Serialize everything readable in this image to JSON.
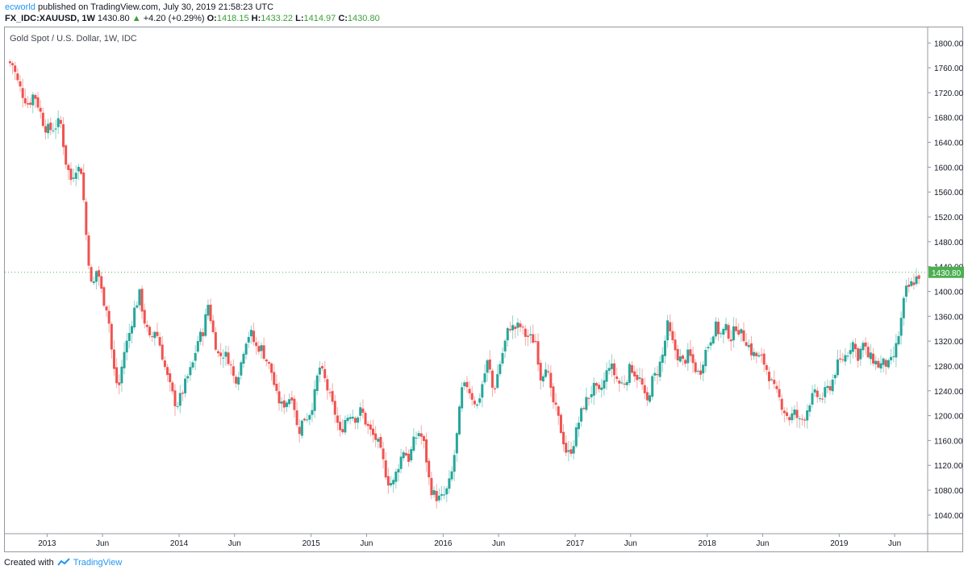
{
  "header": {
    "author": "ecworld",
    "published": "published on TradingView.com, July 30, 2019 21:58:23 UTC",
    "symbol": "FX_IDC:XAUUSD, 1W",
    "last": "1430.80",
    "change_arrow": "▲",
    "change": "+4.20 (+0.29%)",
    "o_label": "O:",
    "o_value": "1418.15",
    "h_label": "H:",
    "h_value": "1433.22",
    "l_label": "L:",
    "l_value": "1414.97",
    "c_label": "C:",
    "c_value": "1430.80"
  },
  "footer": {
    "created_with": "Created with",
    "brand": "TradingView"
  },
  "colors": {
    "up": "#26a69a",
    "down": "#ef5350",
    "last_price_tag": "#4caf50",
    "brand": "#2196f3"
  },
  "chart_data": {
    "type": "candlestick",
    "title": "Gold Spot / U.S. Dollar, 1W, IDC",
    "ylim": [
      1010,
      1825
    ],
    "y_ticks": [
      "1800.00",
      "1760.00",
      "1720.00",
      "1680.00",
      "1640.00",
      "1600.00",
      "1560.00",
      "1520.00",
      "1480.00",
      "1440.00",
      "1400.00",
      "1360.00",
      "1320.00",
      "1280.00",
      "1240.00",
      "1200.00",
      "1160.00",
      "1120.00",
      "1080.00",
      "1040.00"
    ],
    "x_ticks": [
      {
        "label": "2013",
        "x": 2012.98
      },
      {
        "label": "Jun",
        "x": 2013.4
      },
      {
        "label": "2014",
        "x": 2013.98
      },
      {
        "label": "Jun",
        "x": 2014.4
      },
      {
        "label": "2015",
        "x": 2014.98
      },
      {
        "label": "Jun",
        "x": 2015.4
      },
      {
        "label": "2016",
        "x": 2015.98
      },
      {
        "label": "Jun",
        "x": 2016.4
      },
      {
        "label": "2017",
        "x": 2016.98
      },
      {
        "label": "Jun",
        "x": 2017.4
      },
      {
        "label": "2018",
        "x": 2017.98
      },
      {
        "label": "Jun",
        "x": 2018.4
      },
      {
        "label": "2019",
        "x": 2018.98
      },
      {
        "label": "Jun",
        "x": 2019.4
      }
    ],
    "x_range": [
      2012.66,
      2019.65
    ],
    "last_price": 1430.8,
    "last_price_label": "1430.80",
    "weekly_close_path": [
      [
        2012.68,
        1770
      ],
      [
        2012.72,
        1765
      ],
      [
        2012.76,
        1735
      ],
      [
        2012.8,
        1715
      ],
      [
        2012.84,
        1700
      ],
      [
        2012.88,
        1720
      ],
      [
        2012.92,
        1695
      ],
      [
        2012.96,
        1665
      ],
      [
        2013.0,
        1660
      ],
      [
        2013.04,
        1665
      ],
      [
        2013.08,
        1675
      ],
      [
        2013.12,
        1610
      ],
      [
        2013.16,
        1580
      ],
      [
        2013.2,
        1600
      ],
      [
        2013.24,
        1595
      ],
      [
        2013.28,
        1480
      ],
      [
        2013.32,
        1400
      ],
      [
        2013.36,
        1440
      ],
      [
        2013.4,
        1390
      ],
      [
        2013.44,
        1370
      ],
      [
        2013.48,
        1280
      ],
      [
        2013.52,
        1240
      ],
      [
        2013.56,
        1300
      ],
      [
        2013.6,
        1330
      ],
      [
        2013.64,
        1370
      ],
      [
        2013.68,
        1395
      ],
      [
        2013.72,
        1350
      ],
      [
        2013.76,
        1320
      ],
      [
        2013.8,
        1340
      ],
      [
        2013.84,
        1310
      ],
      [
        2013.88,
        1270
      ],
      [
        2013.92,
        1240
      ],
      [
        2013.96,
        1215
      ],
      [
        2014.0,
        1235
      ],
      [
        2014.04,
        1260
      ],
      [
        2014.08,
        1280
      ],
      [
        2014.12,
        1320
      ],
      [
        2014.16,
        1335
      ],
      [
        2014.2,
        1380
      ],
      [
        2014.24,
        1330
      ],
      [
        2014.28,
        1295
      ],
      [
        2014.32,
        1300
      ],
      [
        2014.36,
        1290
      ],
      [
        2014.4,
        1255
      ],
      [
        2014.44,
        1275
      ],
      [
        2014.48,
        1320
      ],
      [
        2014.52,
        1335
      ],
      [
        2014.56,
        1310
      ],
      [
        2014.6,
        1310
      ],
      [
        2014.64,
        1290
      ],
      [
        2014.68,
        1270
      ],
      [
        2014.72,
        1230
      ],
      [
        2014.76,
        1215
      ],
      [
        2014.8,
        1225
      ],
      [
        2014.84,
        1235
      ],
      [
        2014.88,
        1170
      ],
      [
        2014.92,
        1195
      ],
      [
        2014.96,
        1200
      ],
      [
        2015.0,
        1225
      ],
      [
        2015.04,
        1280
      ],
      [
        2015.08,
        1260
      ],
      [
        2015.12,
        1230
      ],
      [
        2015.16,
        1205
      ],
      [
        2015.2,
        1170
      ],
      [
        2015.24,
        1195
      ],
      [
        2015.28,
        1205
      ],
      [
        2015.32,
        1195
      ],
      [
        2015.36,
        1210
      ],
      [
        2015.4,
        1185
      ],
      [
        2015.44,
        1170
      ],
      [
        2015.48,
        1160
      ],
      [
        2015.52,
        1130
      ],
      [
        2015.56,
        1095
      ],
      [
        2015.6,
        1090
      ],
      [
        2015.64,
        1120
      ],
      [
        2015.68,
        1145
      ],
      [
        2015.72,
        1130
      ],
      [
        2015.76,
        1160
      ],
      [
        2015.8,
        1175
      ],
      [
        2015.84,
        1150
      ],
      [
        2015.88,
        1085
      ],
      [
        2015.92,
        1070
      ],
      [
        2015.96,
        1065
      ],
      [
        2016.0,
        1075
      ],
      [
        2016.04,
        1100
      ],
      [
        2016.08,
        1160
      ],
      [
        2016.12,
        1240
      ],
      [
        2016.16,
        1250
      ],
      [
        2016.2,
        1230
      ],
      [
        2016.24,
        1215
      ],
      [
        2016.28,
        1255
      ],
      [
        2016.32,
        1290
      ],
      [
        2016.36,
        1235
      ],
      [
        2016.4,
        1275
      ],
      [
        2016.44,
        1310
      ],
      [
        2016.48,
        1345
      ],
      [
        2016.52,
        1340
      ],
      [
        2016.56,
        1345
      ],
      [
        2016.6,
        1330
      ],
      [
        2016.64,
        1325
      ],
      [
        2016.68,
        1320
      ],
      [
        2016.72,
        1260
      ],
      [
        2016.76,
        1285
      ],
      [
        2016.8,
        1230
      ],
      [
        2016.84,
        1205
      ],
      [
        2016.88,
        1170
      ],
      [
        2016.92,
        1135
      ],
      [
        2016.96,
        1150
      ],
      [
        2017.0,
        1185
      ],
      [
        2017.04,
        1215
      ],
      [
        2017.08,
        1230
      ],
      [
        2017.12,
        1245
      ],
      [
        2017.16,
        1235
      ],
      [
        2017.2,
        1255
      ],
      [
        2017.24,
        1285
      ],
      [
        2017.28,
        1265
      ],
      [
        2017.32,
        1250
      ],
      [
        2017.36,
        1255
      ],
      [
        2017.4,
        1280
      ],
      [
        2017.44,
        1265
      ],
      [
        2017.48,
        1255
      ],
      [
        2017.52,
        1215
      ],
      [
        2017.56,
        1255
      ],
      [
        2017.6,
        1270
      ],
      [
        2017.64,
        1295
      ],
      [
        2017.68,
        1345
      ],
      [
        2017.72,
        1315
      ],
      [
        2017.76,
        1295
      ],
      [
        2017.8,
        1285
      ],
      [
        2017.84,
        1300
      ],
      [
        2017.88,
        1280
      ],
      [
        2017.92,
        1265
      ],
      [
        2017.96,
        1300
      ],
      [
        2018.0,
        1320
      ],
      [
        2018.04,
        1345
      ],
      [
        2018.08,
        1330
      ],
      [
        2018.12,
        1340
      ],
      [
        2018.16,
        1325
      ],
      [
        2018.2,
        1345
      ],
      [
        2018.24,
        1330
      ],
      [
        2018.28,
        1320
      ],
      [
        2018.32,
        1300
      ],
      [
        2018.36,
        1295
      ],
      [
        2018.4,
        1290
      ],
      [
        2018.44,
        1270
      ],
      [
        2018.48,
        1245
      ],
      [
        2018.52,
        1230
      ],
      [
        2018.56,
        1210
      ],
      [
        2018.6,
        1195
      ],
      [
        2018.64,
        1205
      ],
      [
        2018.68,
        1190
      ],
      [
        2018.72,
        1200
      ],
      [
        2018.76,
        1225
      ],
      [
        2018.8,
        1235
      ],
      [
        2018.84,
        1225
      ],
      [
        2018.88,
        1240
      ],
      [
        2018.92,
        1250
      ],
      [
        2018.96,
        1280
      ],
      [
        2019.0,
        1290
      ],
      [
        2019.04,
        1300
      ],
      [
        2019.08,
        1320
      ],
      [
        2019.12,
        1295
      ],
      [
        2019.16,
        1315
      ],
      [
        2019.2,
        1295
      ],
      [
        2019.24,
        1290
      ],
      [
        2019.28,
        1280
      ],
      [
        2019.32,
        1285
      ],
      [
        2019.36,
        1280
      ],
      [
        2019.4,
        1300
      ],
      [
        2019.44,
        1340
      ],
      [
        2019.48,
        1400
      ],
      [
        2019.52,
        1410
      ],
      [
        2019.56,
        1420
      ],
      [
        2019.6,
        1430
      ]
    ]
  }
}
